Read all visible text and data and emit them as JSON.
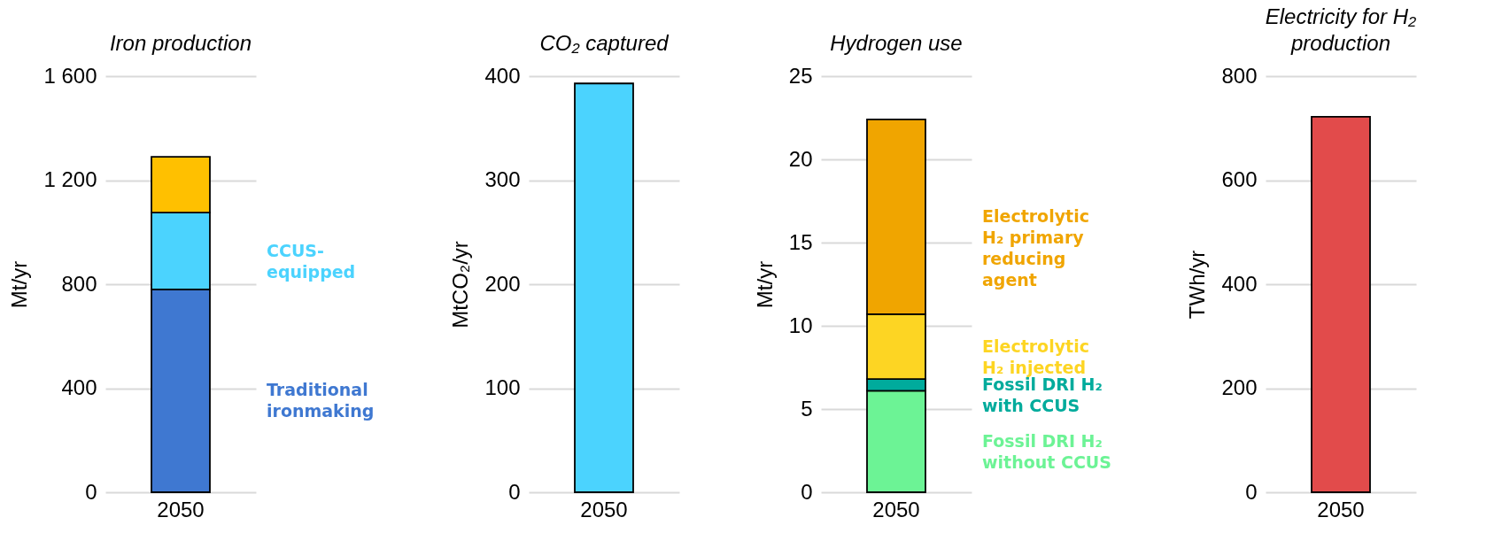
{
  "chart_data": [
    {
      "type": "bar",
      "title": "Iron production",
      "ylabel": "Mt/yr",
      "categories": [
        "2050"
      ],
      "stacked": true,
      "ylim": [
        0,
        1600
      ],
      "yticks": [
        0,
        400,
        800,
        {
          "value": 1200,
          "label": "1 200"
        },
        {
          "value": 1600,
          "label": "1 600"
        }
      ],
      "grid": "y",
      "series": [
        {
          "name": "Traditional ironmaking",
          "color": "#3f78d1",
          "values": [
            780
          ]
        },
        {
          "name": "CCUS-equipped",
          "color": "#4bd3fe",
          "values": [
            295
          ]
        },
        {
          "color": "#ffc000",
          "values": [
            215
          ]
        }
      ]
    },
    {
      "type": "bar",
      "title": "CO₂ captured",
      "ylabel": "MtCO₂/yr",
      "categories": [
        "2050"
      ],
      "ylim": [
        0,
        400
      ],
      "yticks": [
        0,
        100,
        200,
        300,
        400
      ],
      "grid": "y",
      "values": [
        393
      ],
      "color": "#4bd3fe"
    },
    {
      "type": "bar",
      "title": "Hydrogen use",
      "ylabel": "Mt/yr",
      "categories": [
        "2050"
      ],
      "stacked": true,
      "ylim": [
        0,
        25
      ],
      "yticks": [
        0,
        5,
        10,
        15,
        20,
        25
      ],
      "grid": "y",
      "series": [
        {
          "name": "Fossil DRI H₂ without CCUS",
          "color": "#6cf395",
          "values": [
            6.1
          ]
        },
        {
          "name": "Fossil DRI H₂ with CCUS",
          "color": "#00ab9c",
          "values": [
            0.7
          ]
        },
        {
          "name": "Electrolytic H₂ injected",
          "color": "#fdd523",
          "values": [
            3.9
          ]
        },
        {
          "name": "Electrolytic H₂ primary reducing agent",
          "color": "#f0a500",
          "values": [
            11.7
          ]
        }
      ]
    },
    {
      "type": "bar",
      "title": "Electricity for H₂ production",
      "ylabel": "TWh/yr",
      "categories": [
        "2050"
      ],
      "ylim": [
        0,
        800
      ],
      "yticks": [
        0,
        200,
        400,
        600,
        800
      ],
      "grid": "y",
      "values": [
        722
      ],
      "color": "#e24b4b"
    }
  ]
}
